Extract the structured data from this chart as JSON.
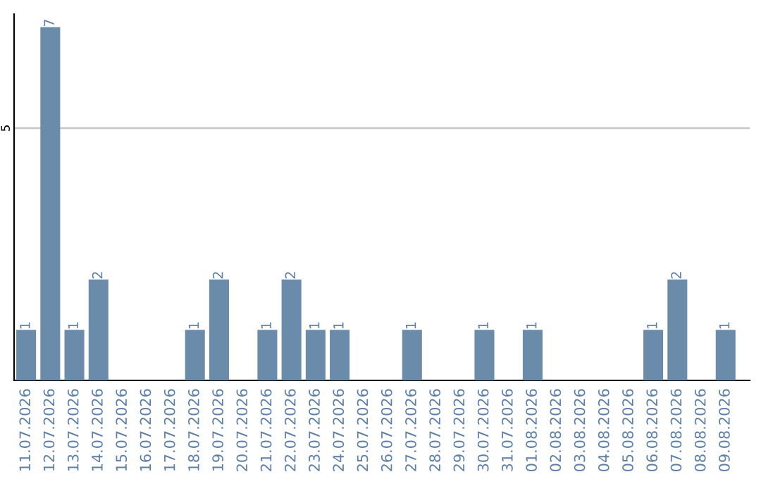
{
  "chart_data": {
    "type": "bar",
    "categories": [
      "11.07.2026",
      "12.07.2026",
      "13.07.2026",
      "14.07.2026",
      "15.07.2026",
      "16.07.2026",
      "17.07.2026",
      "18.07.2026",
      "19.07.2026",
      "20.07.2026",
      "21.07.2026",
      "22.07.2026",
      "23.07.2026",
      "24.07.2026",
      "25.07.2026",
      "26.07.2026",
      "27.07.2026",
      "28.07.2026",
      "29.07.2026",
      "30.07.2026",
      "31.07.2026",
      "01.08.2026",
      "02.08.2026",
      "03.08.2026",
      "04.08.2026",
      "05.08.2026",
      "06.08.2026",
      "07.08.2026",
      "08.08.2026",
      "09.08.2026"
    ],
    "values": [
      1,
      7,
      1,
      2,
      0,
      0,
      0,
      1,
      2,
      0,
      1,
      2,
      1,
      1,
      0,
      0,
      1,
      0,
      0,
      1,
      0,
      1,
      0,
      0,
      0,
      0,
      1,
      2,
      0,
      1
    ],
    "value_labels": [
      "1",
      "7",
      "1",
      "2",
      null,
      null,
      null,
      "1",
      "2",
      null,
      "1",
      "2",
      "1",
      "1",
      null,
      null,
      "1",
      null,
      null,
      "1",
      null,
      "1",
      null,
      null,
      null,
      null,
      "1",
      "2",
      null,
      "1"
    ],
    "color": "#6a8caa",
    "ylim": [
      0,
      7.26
    ],
    "yticks": [
      5
    ],
    "grid": "y",
    "legend": false
  }
}
